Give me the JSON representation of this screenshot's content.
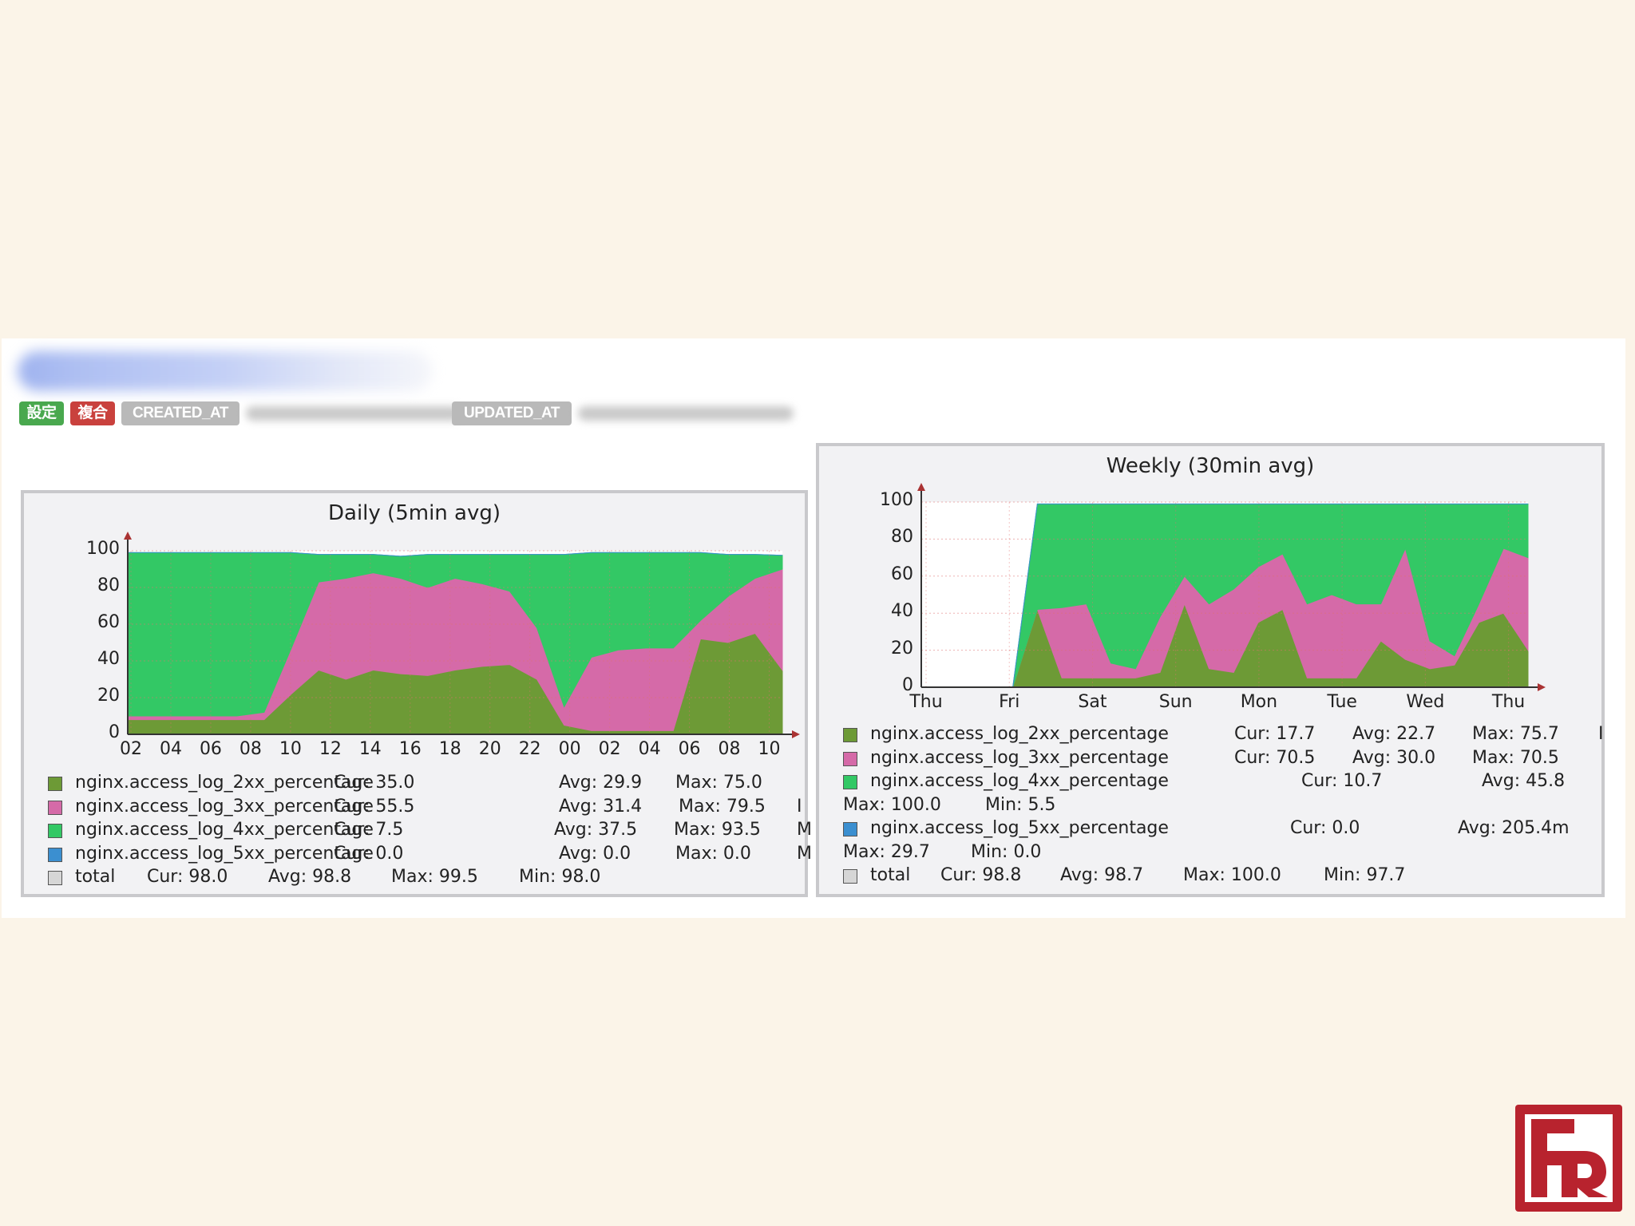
{
  "header": {
    "badges": [
      {
        "label": "設定",
        "color": "#49a84e"
      },
      {
        "label": "複合",
        "color": "#c9413d"
      },
      {
        "label": "CREATED_AT",
        "color": "#b9b9b9"
      },
      {
        "label": "UPDATED_AT",
        "color": "#b9b9b9"
      }
    ]
  },
  "colors": {
    "2xx": "#6d9a36",
    "3xx": "#d56aa8",
    "4xx": "#33c865",
    "5xx": "#3b8fd0",
    "total": "#d6d6d6"
  },
  "chart_data": [
    {
      "type": "area",
      "stacked": true,
      "title": "Daily (5min avg)",
      "x_ticks": [
        "02",
        "04",
        "06",
        "08",
        "10",
        "12",
        "14",
        "16",
        "18",
        "20",
        "22",
        "00",
        "02",
        "04",
        "06",
        "08",
        "10"
      ],
      "ylim": [
        0,
        100
      ],
      "y_ticks": [
        "0",
        "20",
        "40",
        "60",
        "80",
        "100"
      ],
      "series": [
        {
          "name": "nginx.access_log_2xx_percentage",
          "key": "2xx",
          "values": [
            8,
            8,
            8,
            8,
            8,
            8,
            22,
            35,
            30,
            35,
            33,
            32,
            35,
            37,
            38,
            30,
            5,
            2,
            2,
            2,
            2,
            52,
            50,
            55,
            35
          ]
        },
        {
          "name": "nginx.access_log_3xx_percentage",
          "key": "3xx",
          "values": [
            2,
            2,
            2,
            2,
            2,
            4,
            25,
            48,
            55,
            53,
            52,
            48,
            50,
            45,
            40,
            28,
            10,
            40,
            44,
            45,
            45,
            10,
            25,
            30,
            55
          ]
        },
        {
          "name": "nginx.access_log_4xx_percentage",
          "key": "4xx",
          "values": [
            89,
            89,
            89,
            89,
            89,
            87,
            52,
            15,
            13,
            10,
            12,
            18,
            13,
            16,
            20,
            40,
            83,
            57,
            53,
            52,
            52,
            37,
            23,
            13,
            7.5
          ]
        },
        {
          "name": "nginx.access_log_5xx_percentage",
          "key": "5xx",
          "values": [
            0,
            0,
            0,
            0,
            0,
            0,
            0,
            0,
            0,
            0,
            0,
            0,
            0,
            0,
            0,
            0,
            0,
            0,
            0,
            0,
            0,
            0,
            0,
            0,
            0
          ]
        }
      ],
      "legend": [
        {
          "key": "2xx",
          "name": "nginx.access_log_2xx_percentage",
          "cur": "Cur: 35.0",
          "avg": "Avg: 29.9",
          "max": "Max: 75.0",
          "cut": ""
        },
        {
          "key": "3xx",
          "name": "nginx.access_log_3xx_percentage",
          "cur": "Cur: 55.5",
          "avg": "Avg: 31.4",
          "max": "Max: 79.5",
          "cut": "I"
        },
        {
          "key": "4xx",
          "name": "nginx.access_log_4xx_percentage",
          "cur": "Cur:  7.5",
          "avg": "Avg: 37.5",
          "max": "Max: 93.5",
          "cut": "M"
        },
        {
          "key": "5xx",
          "name": "nginx.access_log_5xx_percentage",
          "cur": "Cur:  0.0",
          "avg": "Avg:  0.0",
          "max": "Max:  0.0",
          "cut": "M"
        }
      ],
      "total": {
        "name": "total",
        "cur": "Cur: 98.0",
        "avg": "Avg: 98.8",
        "max": "Max: 99.5",
        "min": "Min: 98.0"
      }
    },
    {
      "type": "area",
      "stacked": true,
      "title": "Weekly (30min avg)",
      "x_ticks": [
        "Thu",
        "Fri",
        "Sat",
        "Sun",
        "Mon",
        "Tue",
        "Wed",
        "Thu"
      ],
      "ylim": [
        0,
        100
      ],
      "y_ticks": [
        "0",
        "20",
        "40",
        "60",
        "80",
        "100"
      ],
      "series": [
        {
          "name": "nginx.access_log_2xx_percentage",
          "key": "2xx",
          "values": [
            0,
            0,
            0,
            42,
            5,
            5,
            5,
            5,
            8,
            45,
            10,
            8,
            35,
            42,
            5,
            5,
            5,
            25,
            15,
            10,
            12,
            35,
            40,
            20
          ],
          "start": 0.07
        },
        {
          "name": "nginx.access_log_3xx_percentage",
          "key": "3xx",
          "values": [
            0,
            0,
            0,
            0,
            38,
            40,
            8,
            5,
            30,
            15,
            35,
            45,
            30,
            30,
            40,
            45,
            40,
            20,
            60,
            15,
            5,
            10,
            35,
            50
          ]
        },
        {
          "name": "nginx.access_log_4xx_percentage",
          "key": "4xx",
          "values": [
            0,
            0,
            0,
            57,
            56,
            54,
            86,
            89,
            61,
            39,
            54,
            46,
            34,
            27,
            54,
            49,
            54,
            54,
            24,
            74,
            82,
            54,
            24,
            29
          ]
        },
        {
          "name": "nginx.access_log_5xx_percentage",
          "key": "5xx",
          "values": [
            0,
            0,
            0,
            0,
            0,
            0,
            0,
            0,
            0,
            0,
            0,
            0,
            0,
            0,
            0,
            0,
            0,
            0,
            0,
            0,
            0,
            0,
            0,
            0
          ]
        }
      ],
      "legend": [
        {
          "key": "2xx",
          "name": "nginx.access_log_2xx_percentage",
          "cur": "Cur: 17.7",
          "avg": "Avg: 22.7",
          "max": "Max: 75.7",
          "cut": "I"
        },
        {
          "key": "3xx",
          "name": "nginx.access_log_3xx_percentage",
          "cur": "Cur: 70.5",
          "avg": "Avg: 30.0",
          "max": "Max: 70.5",
          "cut": ""
        },
        {
          "key": "4xx",
          "name": "nginx.access_log_4xx_percentage",
          "cur": "Cur: 10.7",
          "avg": "Avg: 45.8",
          "max": "",
          "cut": ""
        }
      ],
      "legend_wrap_4xx": {
        "max": "Max: 100.0",
        "min": "Min:  5.5"
      },
      "legend_5xx": {
        "key": "5xx",
        "name": "nginx.access_log_5xx_percentage",
        "cur": "Cur:  0.0",
        "avg": "Avg: 205.4m"
      },
      "legend_wrap_5xx": {
        "max": "Max: 29.7",
        "min": "Min:  0.0"
      },
      "total": {
        "name": "total",
        "cur": "Cur: 98.8",
        "avg": "Avg: 98.7",
        "max": "Max: 100.0",
        "min": "Min: 97.7"
      }
    }
  ]
}
